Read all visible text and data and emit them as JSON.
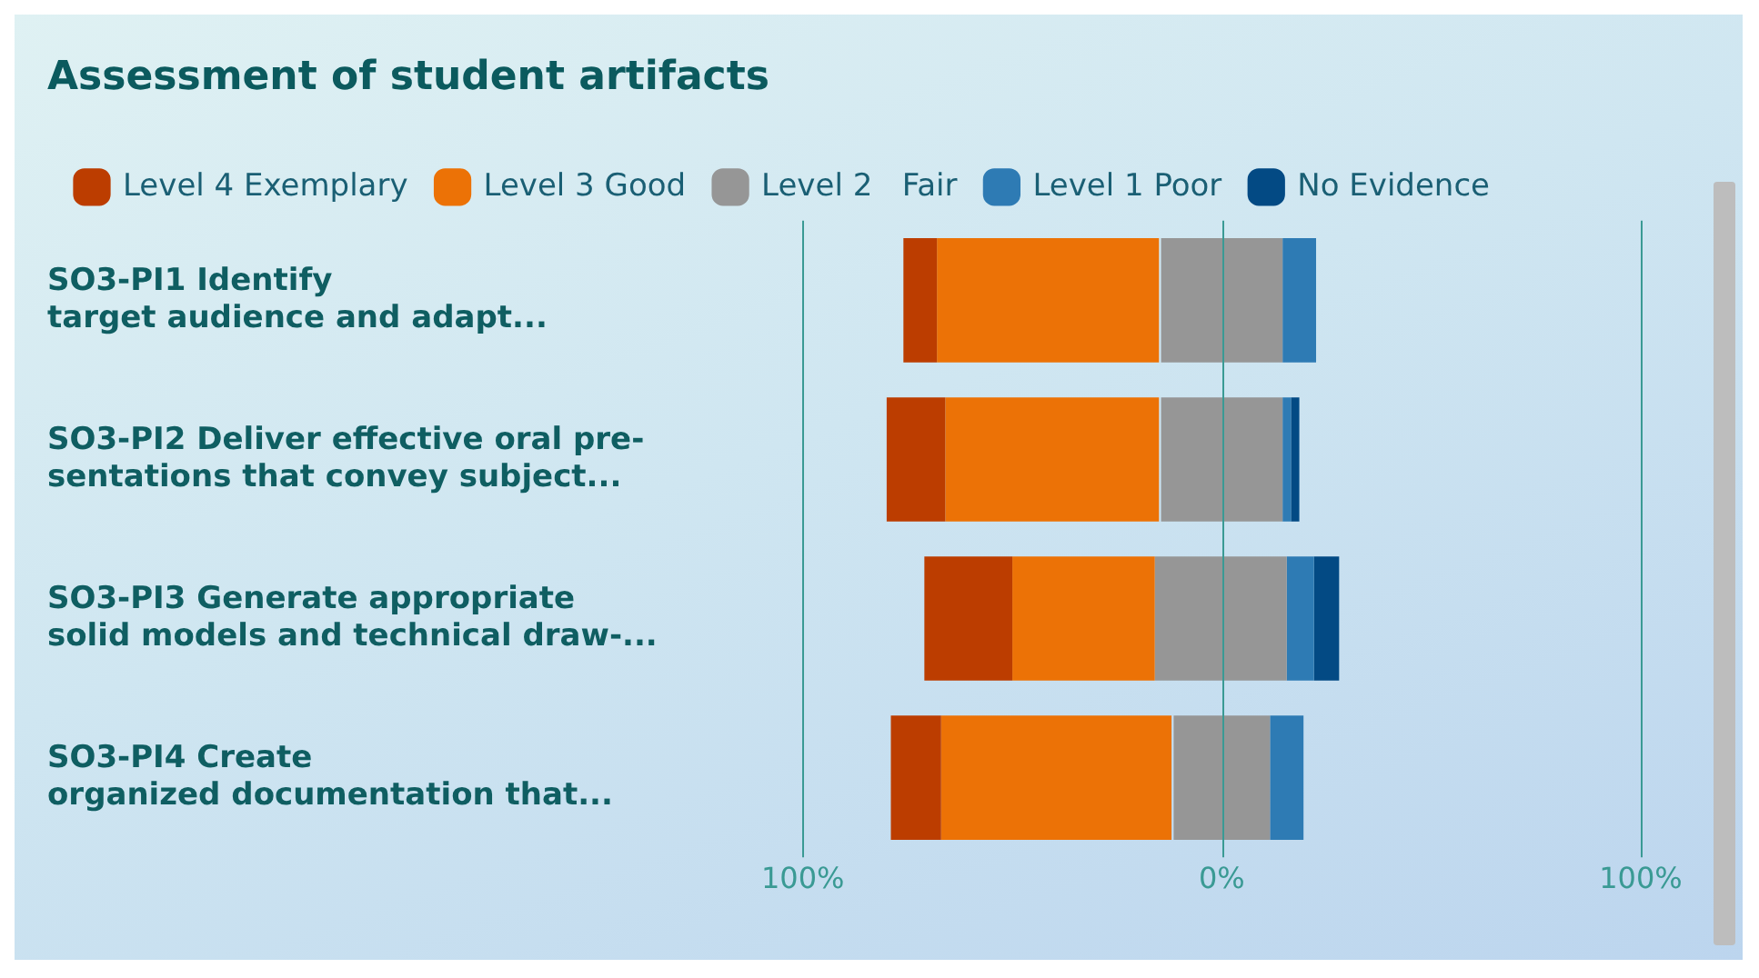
{
  "chart_data": {
    "type": "bar",
    "orientation": "horizontal",
    "title": "Assessment of student artifacts",
    "categories": [
      "SO3-PI1 Identify\ntarget audience and adapt...",
      "SO3-PI2 Deliver effective oral pre-\nsentations that convey subject...",
      "SO3-PI3 Generate appropriate\nsolid models and technical draw-...",
      "SO3-PI4 Create\norganized documentation that..."
    ],
    "series": [
      {
        "name": "Level 4 Exemplary",
        "color": "#bc3d00",
        "base": [
          -76,
          -80,
          -71,
          -79
        ],
        "values": [
          8,
          14,
          21,
          12
        ]
      },
      {
        "name": "Level 3 Good",
        "color": "#ec7206",
        "base": [
          -68,
          -66,
          -50,
          -67
        ],
        "values": [
          53,
          51,
          34,
          55
        ]
      },
      {
        "name": "Level 2   Fair",
        "color": "#969696",
        "base": [
          -14.5,
          -14.5,
          -16,
          -11.5
        ],
        "values": [
          29,
          29,
          31.5,
          23
        ]
      },
      {
        "name": "Level 1 Poor",
        "color": "#2e7bb4",
        "base": [
          14.5,
          14.5,
          15.5,
          11.5
        ],
        "values": [
          8,
          2,
          6.5,
          8
        ]
      },
      {
        "name": "No Evidence",
        "color": "#034a84",
        "base": [
          null,
          16.5,
          22,
          null
        ],
        "values": [
          null,
          2,
          6,
          null
        ]
      }
    ],
    "xlim": [
      -100,
      100
    ],
    "xticks": [
      {
        "value": -100,
        "label": "100%"
      },
      {
        "value": 0,
        "label": "0%"
      },
      {
        "value": 100,
        "label": "100%"
      }
    ],
    "ref_lines": [
      {
        "axis": "x",
        "value": 0,
        "color": "#3a9a94"
      }
    ],
    "grid": false,
    "legend": "top left"
  }
}
